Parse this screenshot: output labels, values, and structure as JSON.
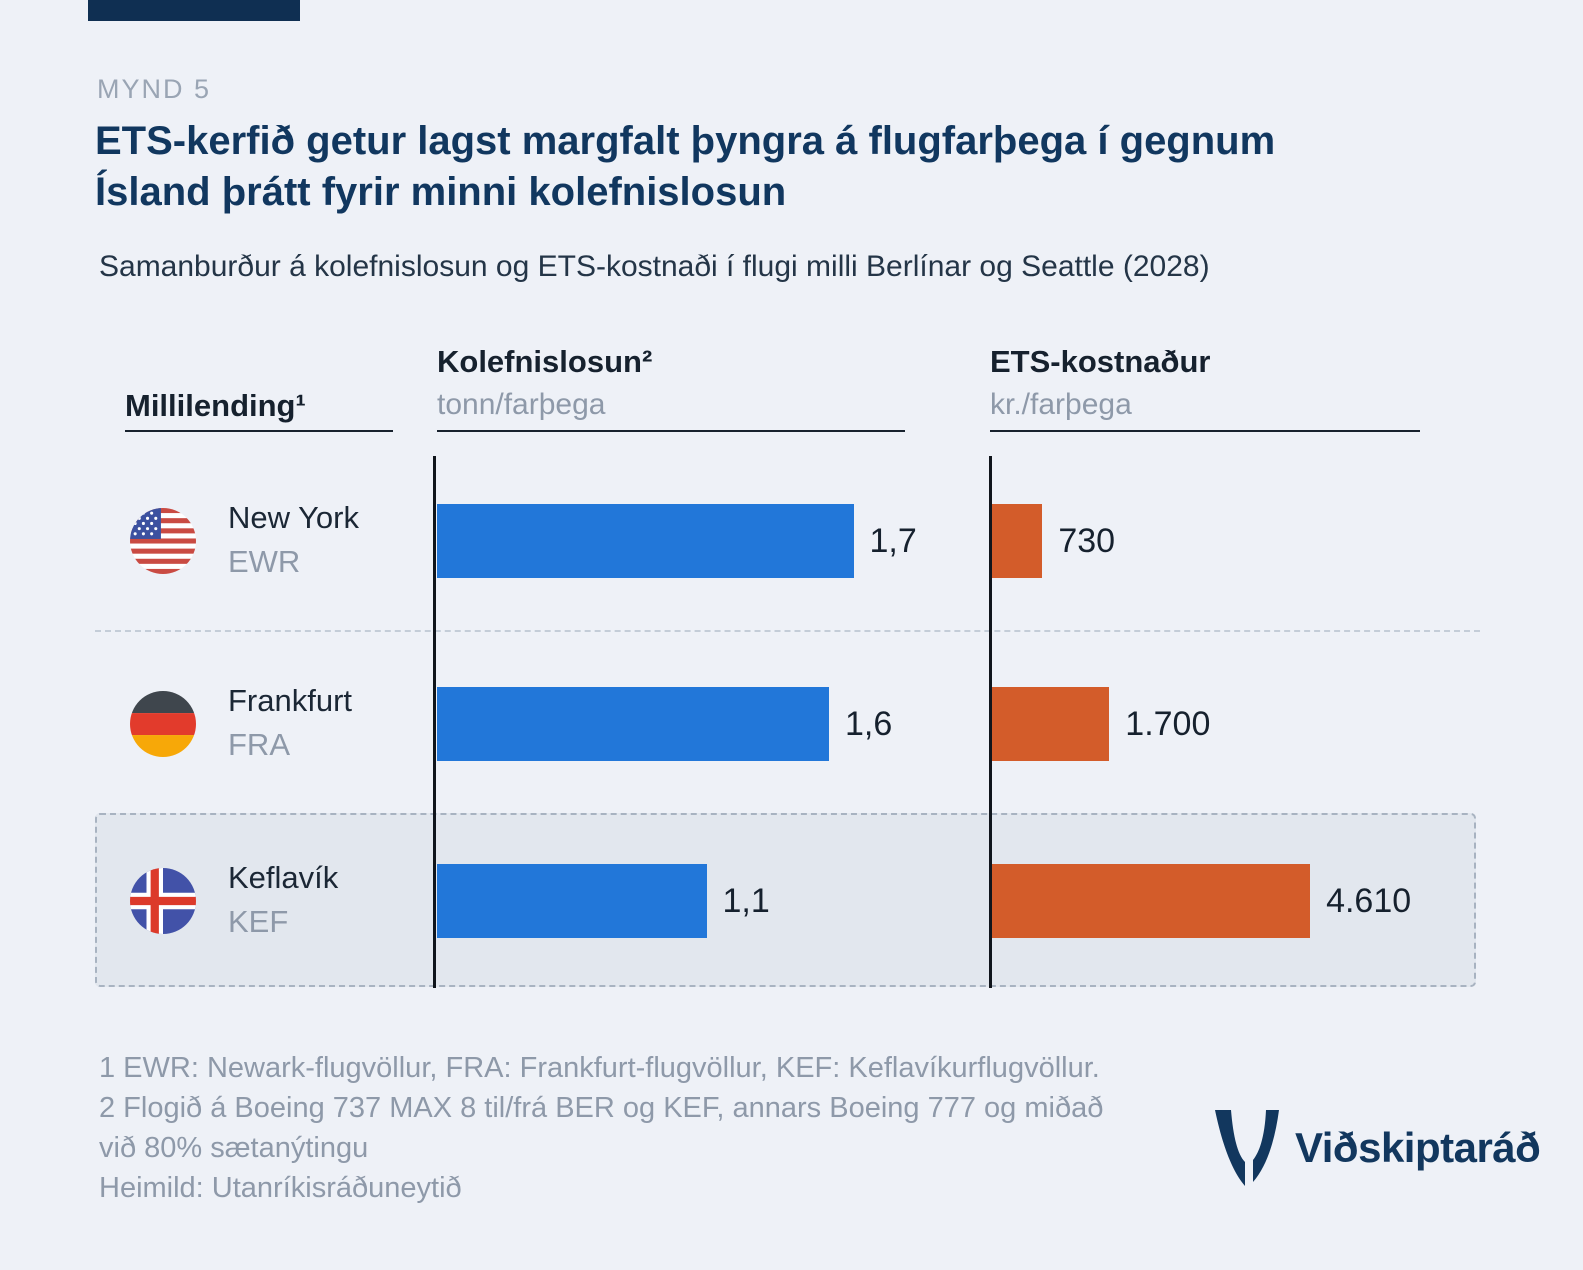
{
  "brand": {
    "logo_text": "Viðskiptaráð",
    "accent_color": "#0f2f52",
    "navy": "#11375f"
  },
  "header": {
    "kicker": "MYND 5",
    "title_line1": "ETS-kerfið getur lagst margfalt þyngra á flugfarþega í gegnum",
    "title_line2": "Ísland þrátt fyrir minni kolefnislosun",
    "subtitle": "Samanburður á kolefnislosun og ETS-kostnaði í flugi milli Berlínar og Seattle (2028)"
  },
  "chart_data": {
    "type": "bar",
    "orientation": "horizontal",
    "title": "ETS-kerfið getur lagst margfalt þyngra á flugfarþega í gegnum Ísland þrátt fyrir minni kolefnislosun",
    "subtitle": "Samanburður á kolefnislosun og ETS-kostnaði í flugi milli Berlínar og Seattle (2028)",
    "row_header": "Millilending¹",
    "legend": "none",
    "grid": "off",
    "highlighted_category": "Keflavík",
    "categories": [
      {
        "city": "New York",
        "code": "EWR",
        "flag": "us-flag-icon"
      },
      {
        "city": "Frankfurt",
        "code": "FRA",
        "flag": "de-flag-icon"
      },
      {
        "city": "Keflavík",
        "code": "KEF",
        "flag": "is-flag-icon",
        "highlighted": true
      }
    ],
    "series": [
      {
        "name": "Kolefnislosun²",
        "unit": "tonn/farþega",
        "color": "#2277d9",
        "values": [
          1.7,
          1.6,
          1.1
        ],
        "labels": [
          "1,7",
          "1,6",
          "1,1"
        ]
      },
      {
        "name": "ETS-kostnaður",
        "unit": "kr./farþega",
        "color": "#d35c2a",
        "values": [
          730,
          1700,
          4610
        ],
        "labels": [
          "730",
          "1.700",
          "4.610"
        ]
      }
    ]
  },
  "footnotes": {
    "line1": "1 EWR: Newark-flugvöllur, FRA: Frankfurt-flugvöllur, KEF: Keflavíkurflugvöllur.",
    "line2": "2 Flogið á Boeing 737 MAX 8 til/frá BER og KEF, annars Boeing 777 og miðað",
    "line3": "við 80% sætanýtingu",
    "source": "Heimild: Utanríkisráðuneytið"
  }
}
